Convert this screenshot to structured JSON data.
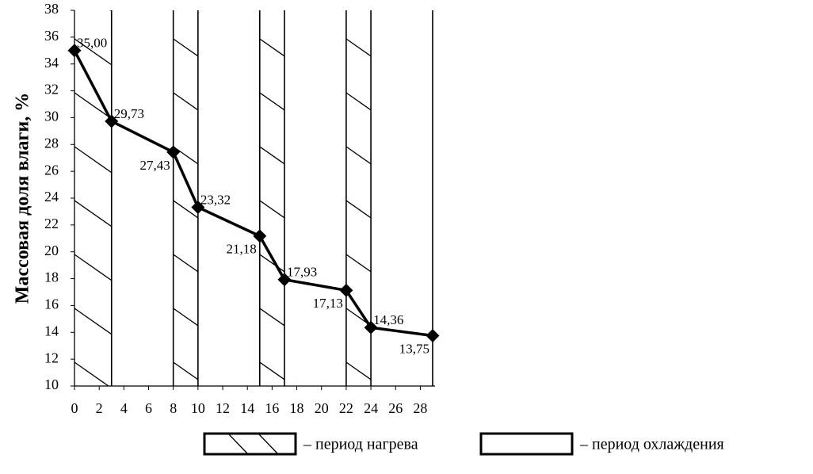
{
  "chart_data": {
    "type": "line",
    "y_label": "Массовая доля влаги,  %",
    "x": [
      0,
      3,
      8,
      10,
      15,
      17,
      22,
      24,
      29
    ],
    "series": [
      {
        "color": "#000000",
        "values": [
          35.0,
          29.73,
          27.43,
          23.32,
          21.18,
          17.93,
          17.13,
          14.36,
          13.75
        ],
        "value_labels": [
          "35,00",
          "29,73",
          "27,43",
          "23,32",
          "21,18",
          "17,93",
          "17,13",
          "14,36",
          "13,75"
        ]
      }
    ],
    "xlim": [
      0,
      29
    ],
    "xticks": [
      0,
      2,
      4,
      6,
      8,
      10,
      12,
      14,
      16,
      18,
      20,
      22,
      24,
      26,
      28
    ],
    "ylim": [
      10,
      38
    ],
    "yticks": [
      10,
      12,
      14,
      16,
      18,
      20,
      22,
      24,
      26,
      28,
      30,
      32,
      34,
      36,
      38
    ],
    "heating_periods": [
      [
        0,
        3
      ],
      [
        8,
        10
      ],
      [
        15,
        17
      ],
      [
        22,
        24
      ]
    ],
    "period_bounds": [
      3,
      8,
      10,
      15,
      17,
      22,
      24,
      29
    ],
    "legend": [
      {
        "label": "– период нагрева",
        "hatch": true
      },
      {
        "label": "– период охлаждения",
        "hatch": false
      }
    ]
  }
}
